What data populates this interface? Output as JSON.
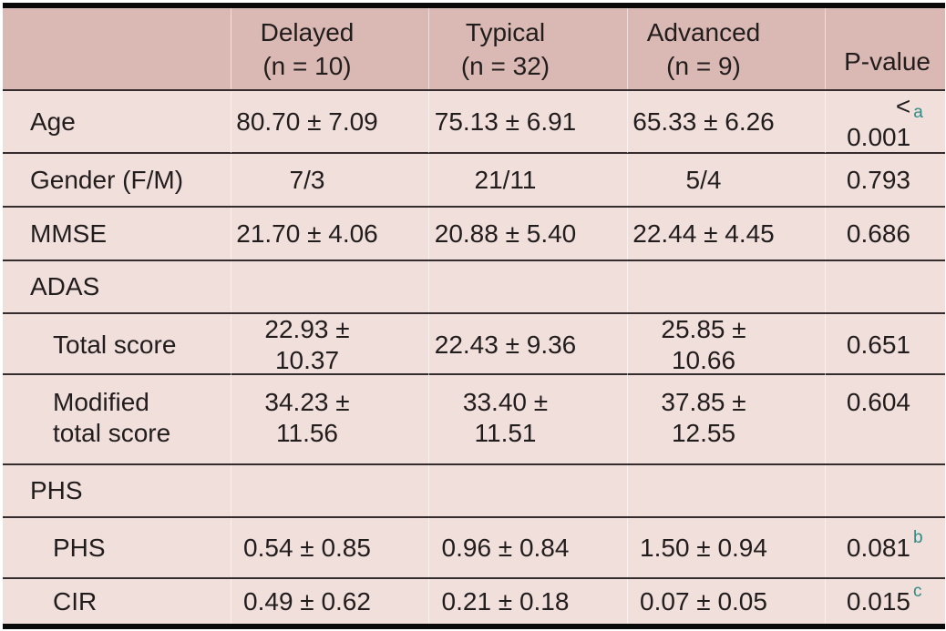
{
  "table": {
    "columns": [
      {
        "label": ""
      },
      {
        "label": "Delayed\n(n = 10)"
      },
      {
        "label": "Typical\n(n = 32)"
      },
      {
        "label": "Advanced\n(n = 9)"
      },
      {
        "label": "P-value"
      }
    ],
    "rows": [
      {
        "label": "Age",
        "indent": false,
        "section": false,
        "values": [
          "80.70 ± 7.09",
          "75.13 ± 6.91",
          "65.33 ± 6.26"
        ],
        "p": "< 0.001",
        "sup": "a"
      },
      {
        "label": "Gender (F/M)",
        "indent": false,
        "section": false,
        "values": [
          "7/3",
          "21/11",
          "5/4"
        ],
        "p": "0.793",
        "sup": ""
      },
      {
        "label": "MMSE",
        "indent": false,
        "section": false,
        "values": [
          "21.70 ± 4.06",
          "20.88 ± 5.40",
          "22.44 ± 4.45"
        ],
        "p": "0.686",
        "sup": ""
      },
      {
        "label": "ADAS",
        "indent": false,
        "section": true,
        "values": [
          "",
          "",
          ""
        ],
        "p": "",
        "sup": ""
      },
      {
        "label": "Total score",
        "indent": true,
        "section": false,
        "values": [
          "22.93 ± 10.37",
          "22.43 ± 9.36",
          "25.85 ± 10.66"
        ],
        "p": "0.651",
        "sup": ""
      },
      {
        "label": "Modified\n total score",
        "indent": true,
        "section": false,
        "values": [
          "34.23 ± 11.56",
          "33.40 ± 11.51",
          "37.85 ± 12.55"
        ],
        "p": "0.604",
        "sup": ""
      },
      {
        "label": "PHS",
        "indent": false,
        "section": true,
        "values": [
          "",
          "",
          ""
        ],
        "p": "",
        "sup": ""
      },
      {
        "label": "PHS",
        "indent": true,
        "section": false,
        "values": [
          "0.54 ± 0.85",
          "0.96 ± 0.84",
          "1.50 ± 0.94"
        ],
        "p": "0.081",
        "sup": "b"
      },
      {
        "label": "CIR",
        "indent": true,
        "section": false,
        "values": [
          "0.49 ± 0.62",
          "0.21 ± 0.18",
          "0.07 ± 0.05"
        ],
        "p": "0.015",
        "sup": "c"
      }
    ],
    "colors": {
      "header_bg": "#dab8b3",
      "row_bg": "#f1dfdc",
      "rule_dark": "#352d2d",
      "outer_border": "#0b0a0a",
      "superscript_teal": "#2f8b84",
      "text": "#221d1d"
    }
  },
  "chart_data": {
    "type": "table",
    "title": "",
    "columns": [
      "",
      "Delayed (n = 10)",
      "Typical (n = 32)",
      "Advanced (n = 9)",
      "P-value"
    ],
    "rows": [
      [
        "Age",
        "80.70 ± 7.09",
        "75.13 ± 6.91",
        "65.33 ± 6.26",
        "< 0.001 a"
      ],
      [
        "Gender (F/M)",
        "7/3",
        "21/11",
        "5/4",
        "0.793"
      ],
      [
        "MMSE",
        "21.70 ± 4.06",
        "20.88 ± 5.40",
        "22.44 ± 4.45",
        "0.686"
      ],
      [
        "ADAS",
        "",
        "",
        "",
        ""
      ],
      [
        "Total score",
        "22.93 ± 10.37",
        "22.43 ± 9.36",
        "25.85 ± 10.66",
        "0.651"
      ],
      [
        "Modified total score",
        "34.23 ± 11.56",
        "33.40 ± 11.51",
        "37.85 ± 12.55",
        "0.604"
      ],
      [
        "PHS",
        "",
        "",
        "",
        ""
      ],
      [
        "PHS",
        "0.54 ± 0.85",
        "0.96 ± 0.84",
        "1.50 ± 0.94",
        "0.081 b"
      ],
      [
        "CIR",
        "0.49 ± 0.62",
        "0.21 ± 0.18",
        "0.07 ± 0.05",
        "0.015 c"
      ]
    ]
  }
}
